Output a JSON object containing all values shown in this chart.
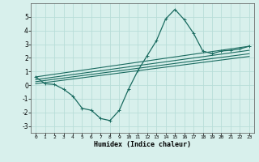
{
  "xlabel": "Humidex (Indice chaleur)",
  "bg_color": "#d8f0ec",
  "grid_color": "#b8ddd8",
  "line_color": "#1a6b60",
  "xlim": [
    -0.5,
    23.5
  ],
  "ylim": [
    -3.5,
    6.0
  ],
  "xticks": [
    0,
    1,
    2,
    3,
    4,
    5,
    6,
    7,
    8,
    9,
    10,
    11,
    12,
    13,
    14,
    15,
    16,
    17,
    18,
    19,
    20,
    21,
    22,
    23
  ],
  "yticks": [
    -3,
    -2,
    -1,
    0,
    1,
    2,
    3,
    4,
    5
  ],
  "line1_x": [
    0,
    1,
    2,
    3,
    4,
    5,
    6,
    7,
    8,
    9,
    10,
    11,
    12,
    13,
    14,
    15,
    16,
    17,
    18,
    19,
    20,
    21,
    22,
    23
  ],
  "line1_y": [
    0.6,
    0.1,
    0.05,
    -0.3,
    -0.8,
    -1.7,
    -1.85,
    -2.45,
    -2.6,
    -1.85,
    -0.3,
    1.05,
    2.15,
    3.25,
    4.85,
    5.55,
    4.8,
    3.8,
    2.5,
    2.3,
    2.5,
    2.55,
    2.65,
    2.85
  ],
  "line2_x": [
    0,
    23
  ],
  "line2_y": [
    0.6,
    2.85
  ],
  "line3_x": [
    0,
    23
  ],
  "line3_y": [
    0.4,
    2.55
  ],
  "line4_x": [
    0,
    23
  ],
  "line4_y": [
    0.25,
    2.3
  ],
  "line5_x": [
    0,
    23
  ],
  "line5_y": [
    0.1,
    2.1
  ]
}
